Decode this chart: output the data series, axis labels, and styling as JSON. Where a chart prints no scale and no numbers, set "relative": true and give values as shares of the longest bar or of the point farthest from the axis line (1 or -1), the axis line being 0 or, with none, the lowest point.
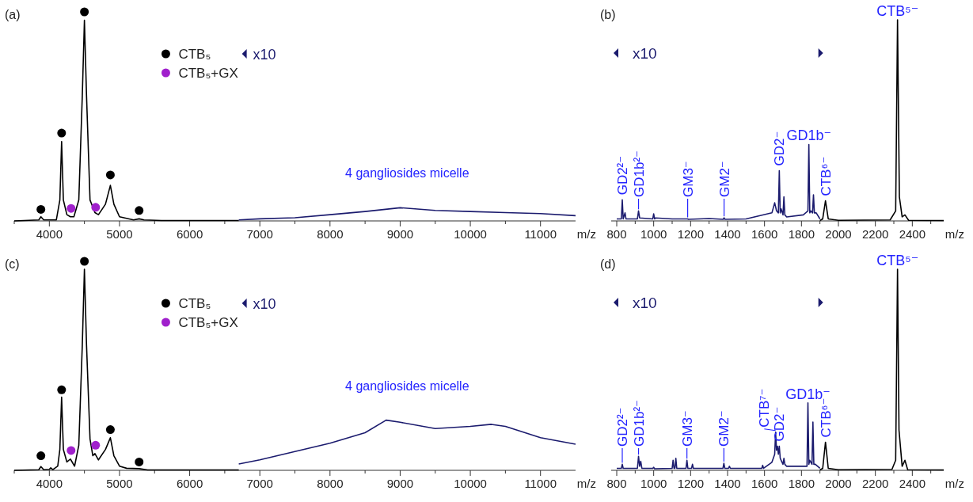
{
  "chart_data": [
    {
      "type": "line",
      "title": "(a)",
      "xlabel": "m/z",
      "xlim": [
        3500,
        11500
      ],
      "xticks": [
        {
          "value": 3500,
          "label": null
        },
        4000,
        {
          "value": 4500,
          "label": null
        },
        5000,
        {
          "value": 5500,
          "label": null
        },
        6000,
        {
          "value": 6500,
          "label": null
        },
        7000,
        {
          "value": 7500,
          "label": null
        },
        8000,
        {
          "value": 8500,
          "label": null
        },
        9000,
        {
          "value": 9500,
          "label": null
        },
        10000,
        {
          "value": 10500,
          "label": null
        },
        11000
      ],
      "relative": true,
      "tick_labels": "x",
      "legend": "top",
      "annotations": [
        "x10",
        "4 gangliosides micelle"
      ],
      "series": [
        {
          "type": "line",
          "color": "#000000",
          "x": [
            3500,
            3850,
            3880,
            3920,
            4100,
            4150,
            4175,
            4200,
            4250,
            4300,
            4350,
            4420,
            4470,
            4500,
            4530,
            4580,
            4650,
            4700,
            4800,
            4870,
            4920,
            5000,
            5200,
            5280,
            5350,
            5600,
            6700
          ],
          "values": [
            0,
            0.005,
            0.02,
            0.005,
            0.005,
            0.1,
            0.38,
            0.1,
            0.03,
            0.02,
            0.02,
            0.1,
            0.6,
            0.96,
            0.6,
            0.1,
            0.04,
            0.03,
            0.08,
            0.17,
            0.08,
            0.02,
            0.005,
            0.01,
            0.005,
            0.002,
            0.002
          ]
        },
        {
          "type": "line",
          "color": "#1b1b6e",
          "x": [
            6700,
            7000,
            7500,
            8000,
            8500,
            9000,
            9500,
            10000,
            10500,
            11000,
            11500
          ],
          "values": [
            0.005,
            0.01,
            0.015,
            0.03,
            0.045,
            0.063,
            0.05,
            0.045,
            0.04,
            0.035,
            0.025
          ]
        },
        {
          "type": "scatter",
          "name": "CTB₅",
          "color": "#000000",
          "marker": "circle",
          "x": [
            3880,
            4175,
            4500,
            4870,
            5280
          ],
          "values": [
            0.055,
            0.42,
            1,
            0.22,
            0.05
          ]
        },
        {
          "type": "scatter",
          "name": "CTB₅+GX",
          "color": "#a020cc",
          "marker": "circle",
          "x": [
            4310,
            4660
          ],
          "values": [
            0.06,
            0.065
          ]
        }
      ]
    },
    {
      "type": "line",
      "title": "(b)",
      "xlabel": "m/z",
      "xlim": [
        770,
        2570
      ],
      "xticks": [
        800,
        {
          "value": 900,
          "label": null
        },
        1000,
        {
          "value": 1100,
          "label": null
        },
        1200,
        {
          "value": 1300,
          "label": null
        },
        1400,
        {
          "value": 1500,
          "label": null
        },
        1600,
        {
          "value": 1700,
          "label": null
        },
        1800,
        {
          "value": 1900,
          "label": null
        },
        2000,
        {
          "value": 2100,
          "label": null
        },
        2200,
        {
          "value": 2300,
          "label": null
        },
        2400,
        {
          "value": 2500,
          "label": null
        }
      ],
      "relative": true,
      "tick_labels": "x",
      "annotations": [
        "x10",
        {
          "text": "GD2²⁻",
          "x": 830,
          "y": 0.105
        },
        {
          "text": "GD1b²⁻",
          "x": 918,
          "y": 0.05
        },
        {
          "text": "GM3⁻",
          "x": 1184,
          "y": 0.01
        },
        {
          "text": "GM2⁻",
          "x": 1381,
          "y": 0.015
        },
        {
          "text": "GD2⁻",
          "x": 1680,
          "y": 0.25
        },
        {
          "text": "GD1b⁻",
          "x": 1840,
          "y": 0.38
        },
        {
          "text": "CTB⁶⁻",
          "x": 1930,
          "y": 0.1
        },
        {
          "text": "CTB⁵⁻",
          "x": 2320,
          "y": 1
        }
      ],
      "series": [
        {
          "type": "line",
          "color": "#000000",
          "x": [
            1900,
            1915,
            1930,
            1945,
            2000,
            2280,
            2310,
            2320,
            2330,
            2345,
            2360,
            2380,
            2570
          ],
          "values": [
            0.002,
            0.01,
            0.1,
            0.01,
            0.003,
            0.005,
            0.05,
            1,
            0.12,
            0.02,
            0.03,
            0.003,
            0.002
          ]
        },
        {
          "type": "line",
          "color": "#1b1b6e",
          "x": [
            800,
            825,
            830,
            835,
            845,
            850,
            912,
            918,
            924,
            995,
            1000,
            1005,
            1010,
            1100,
            1180,
            1184,
            1188,
            1300,
            1376,
            1381,
            1386,
            1500,
            1640,
            1655,
            1665,
            1675,
            1680,
            1685,
            1690,
            1700,
            1705,
            1710,
            1720,
            1810,
            1835,
            1840,
            1845,
            1850,
            1860,
            1865,
            1870,
            1880,
            1900
          ],
          "values": [
            0.01,
            0.01,
            0.105,
            0.01,
            0.04,
            0.01,
            0.01,
            0.05,
            0.015,
            0.01,
            0.035,
            0.01,
            0.015,
            0.01,
            0.01,
            0.01,
            0.008,
            0.012,
            0.008,
            0.015,
            0.008,
            0.01,
            0.04,
            0.09,
            0.05,
            0.04,
            0.25,
            0.04,
            0.06,
            0.03,
            0.12,
            0.03,
            0.02,
            0.03,
            0.05,
            0.38,
            0.04,
            0.05,
            0.04,
            0.13,
            0.04,
            0.04,
            0.01
          ]
        }
      ]
    },
    {
      "type": "line",
      "title": "(c)",
      "xlabel": "m/z",
      "xlim": [
        3500,
        11500
      ],
      "xticks": [
        {
          "value": 3500,
          "label": null
        },
        4000,
        {
          "value": 4500,
          "label": null
        },
        5000,
        {
          "value": 5500,
          "label": null
        },
        6000,
        {
          "value": 6500,
          "label": null
        },
        7000,
        {
          "value": 7500,
          "label": null
        },
        8000,
        {
          "value": 8500,
          "label": null
        },
        9000,
        {
          "value": 9500,
          "label": null
        },
        10000,
        {
          "value": 10500,
          "label": null
        },
        11000
      ],
      "relative": true,
      "tick_labels": "x",
      "legend": "top",
      "annotations": [
        "x10",
        "4 gangliosides micelle"
      ],
      "series": [
        {
          "type": "line",
          "color": "#000000",
          "x": [
            3500,
            3850,
            3880,
            3920,
            4000,
            4020,
            4050,
            4120,
            4150,
            4175,
            4200,
            4250,
            4300,
            4360,
            4420,
            4470,
            4500,
            4530,
            4580,
            4620,
            4650,
            4700,
            4800,
            4870,
            4920,
            5000,
            5100,
            5280,
            5400,
            6700
          ],
          "values": [
            0,
            0.003,
            0.018,
            0.003,
            0.005,
            0.012,
            0.003,
            0.02,
            0.1,
            0.35,
            0.1,
            0.04,
            0.054,
            0.02,
            0.12,
            0.6,
            0.962,
            0.6,
            0.15,
            0.07,
            0.08,
            0.05,
            0.1,
            0.156,
            0.07,
            0.02,
            0.01,
            0.008,
            0.002,
            0.002
          ]
        },
        {
          "type": "line",
          "color": "#1b1b6e",
          "x": [
            6700,
            7000,
            7500,
            8000,
            8500,
            8800,
            9000,
            9500,
            10000,
            10300,
            10500,
            11000,
            11500
          ],
          "values": [
            0.03,
            0.05,
            0.09,
            0.13,
            0.18,
            0.24,
            0.23,
            0.2,
            0.21,
            0.22,
            0.21,
            0.156,
            0.125
          ]
        },
        {
          "type": "scatter",
          "name": "CTB₅",
          "color": "#000000",
          "marker": "circle",
          "x": [
            3880,
            4175,
            4500,
            4870,
            5280
          ],
          "values": [
            0.07,
            0.385,
            1,
            0.195,
            0.04
          ]
        },
        {
          "type": "scatter",
          "name": "CTB₅+GX",
          "color": "#a020cc",
          "marker": "circle",
          "x": [
            4310,
            4660
          ],
          "values": [
            0.095,
            0.12
          ]
        }
      ]
    },
    {
      "type": "line",
      "title": "(d)",
      "xlabel": "m/z",
      "xlim": [
        770,
        2570
      ],
      "xticks": [
        800,
        {
          "value": 900,
          "label": null
        },
        1000,
        {
          "value": 1100,
          "label": null
        },
        1200,
        {
          "value": 1300,
          "label": null
        },
        1400,
        {
          "value": 1500,
          "label": null
        },
        1600,
        {
          "value": 1700,
          "label": null
        },
        1800,
        {
          "value": 1900,
          "label": null
        },
        2000,
        {
          "value": 2100,
          "label": null
        },
        2200,
        {
          "value": 2300,
          "label": null
        },
        2400,
        {
          "value": 2500,
          "label": null
        }
      ],
      "relative": true,
      "tick_labels": "x",
      "annotations": [
        "x10",
        {
          "text": "GD2²⁻",
          "x": 830,
          "y": 0.03
        },
        {
          "text": "GD1b²⁻",
          "x": 918,
          "y": 0.07
        },
        {
          "text": "GM3⁻",
          "x": 1180,
          "y": 0.05
        },
        {
          "text": "GM2⁻",
          "x": 1380,
          "y": 0.035
        },
        {
          "text": "CTB⁷⁻",
          "x": 1660,
          "y": 0.19
        },
        {
          "text": "GD2⁻",
          "x": 1680,
          "y": 0.12
        },
        {
          "text": "GD1b⁻",
          "x": 1835,
          "y": 0.335
        },
        {
          "text": "CTB⁶⁻",
          "x": 1930,
          "y": 0.14
        },
        {
          "text": "CTB⁵⁻",
          "x": 2320,
          "y": 1
        }
      ],
      "series": [
        {
          "type": "line",
          "color": "#000000",
          "x": [
            1900,
            1915,
            1930,
            1945,
            2000,
            2290,
            2310,
            2320,
            2328,
            2345,
            2360,
            2375,
            2570
          ],
          "values": [
            0.002,
            0.01,
            0.14,
            0.01,
            0.003,
            0.005,
            0.05,
            1,
            0.2,
            0.02,
            0.05,
            0.003,
            0.002
          ]
        },
        {
          "type": "line",
          "color": "#1b1b6e",
          "x": [
            800,
            825,
            830,
            835,
            912,
            918,
            924,
            930,
            936,
            995,
            1000,
            1005,
            1100,
            1105,
            1110,
            1115,
            1120,
            1125,
            1175,
            1180,
            1185,
            1205,
            1210,
            1215,
            1375,
            1380,
            1385,
            1405,
            1410,
            1415,
            1585,
            1590,
            1595,
            1640,
            1655,
            1660,
            1665,
            1670,
            1675,
            1680,
            1685,
            1690,
            1700,
            1705,
            1710,
            1720,
            1810,
            1830,
            1835,
            1840,
            1845,
            1857,
            1862,
            1867,
            1875,
            1900
          ],
          "values": [
            0.01,
            0.01,
            0.03,
            0.01,
            0.01,
            0.07,
            0.02,
            0.045,
            0.01,
            0.01,
            0.015,
            0.008,
            0.01,
            0.05,
            0.01,
            0.01,
            0.06,
            0.01,
            0.01,
            0.05,
            0.01,
            0.01,
            0.03,
            0.01,
            0.01,
            0.035,
            0.01,
            0.01,
            0.02,
            0.01,
            0.01,
            0.025,
            0.01,
            0.04,
            0.08,
            0.19,
            0.1,
            0.12,
            0.08,
            0.12,
            0.06,
            0.05,
            0.03,
            0.06,
            0.03,
            0.02,
            0.02,
            0.02,
            0.335,
            0.03,
            0.05,
            0.03,
            0.24,
            0.03,
            0.03,
            0.01
          ]
        }
      ]
    }
  ]
}
